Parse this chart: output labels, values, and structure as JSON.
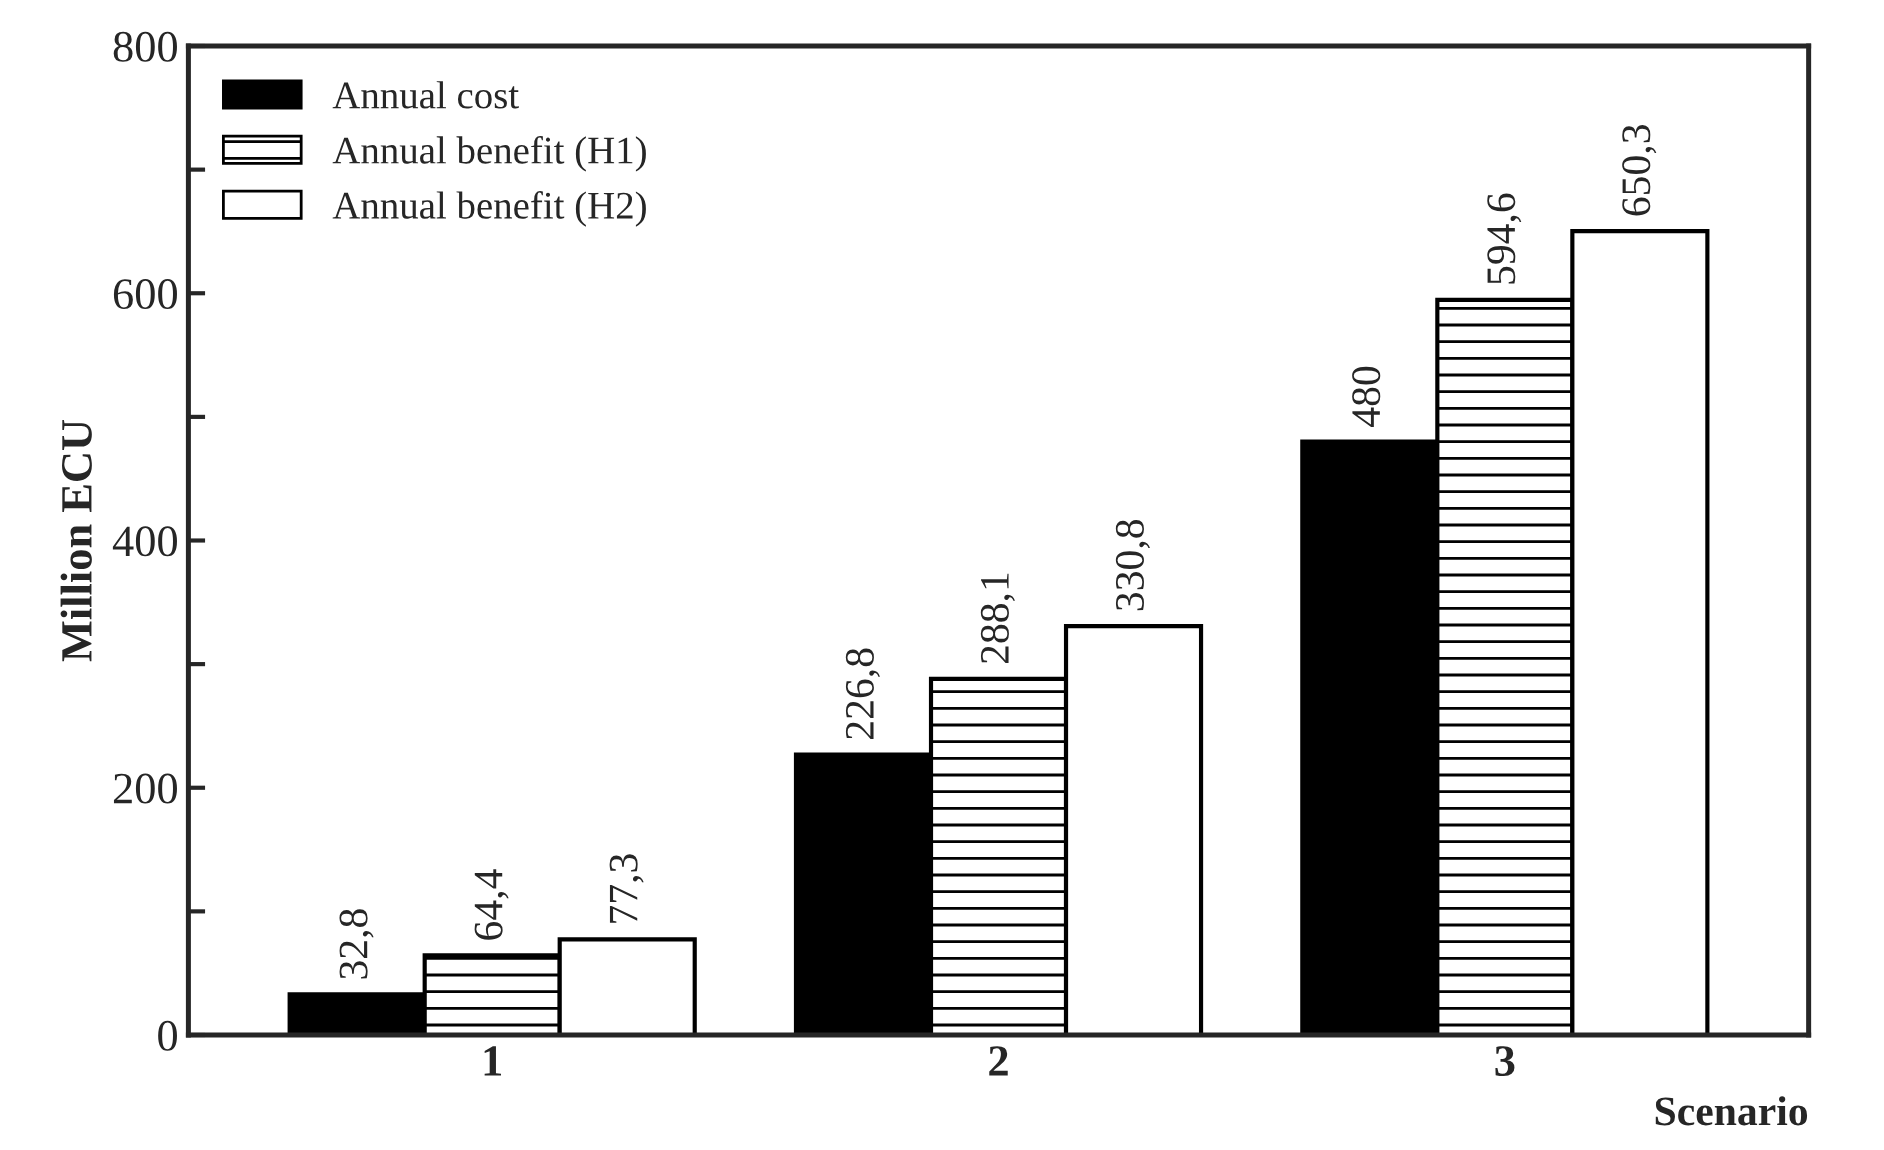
{
  "chart_data": {
    "type": "bar",
    "xlabel": "Scenario",
    "ylabel": "Million ECU",
    "categories": [
      "1",
      "2",
      "3"
    ],
    "series": [
      {
        "name": "Annual cost",
        "color": "#000000",
        "values": [
          32.8,
          226.8,
          480
        ],
        "value_labels": [
          "32,8",
          "226,8",
          "480"
        ]
      },
      {
        "name": "Annual benefit (H1)",
        "color": "#000000",
        "values": [
          64.4,
          288.1,
          594.6
        ],
        "value_labels": [
          "64,4",
          "288,1",
          "594,6"
        ]
      },
      {
        "name": "Annual benefit (H2)",
        "color": "#ffffff",
        "values": [
          77.3,
          330.8,
          650.3
        ],
        "value_labels": [
          "77,3",
          "330,8",
          "650,3"
        ]
      }
    ],
    "ylim": [
      0,
      800
    ],
    "yticks": [
      0,
      {
        "value": 100,
        "label": null
      },
      200,
      {
        "value": 300,
        "label": null
      },
      400,
      {
        "value": 500,
        "label": null
      },
      600,
      {
        "value": 700,
        "label": null
      },
      800
    ],
    "grid": false,
    "legend": "top left"
  }
}
